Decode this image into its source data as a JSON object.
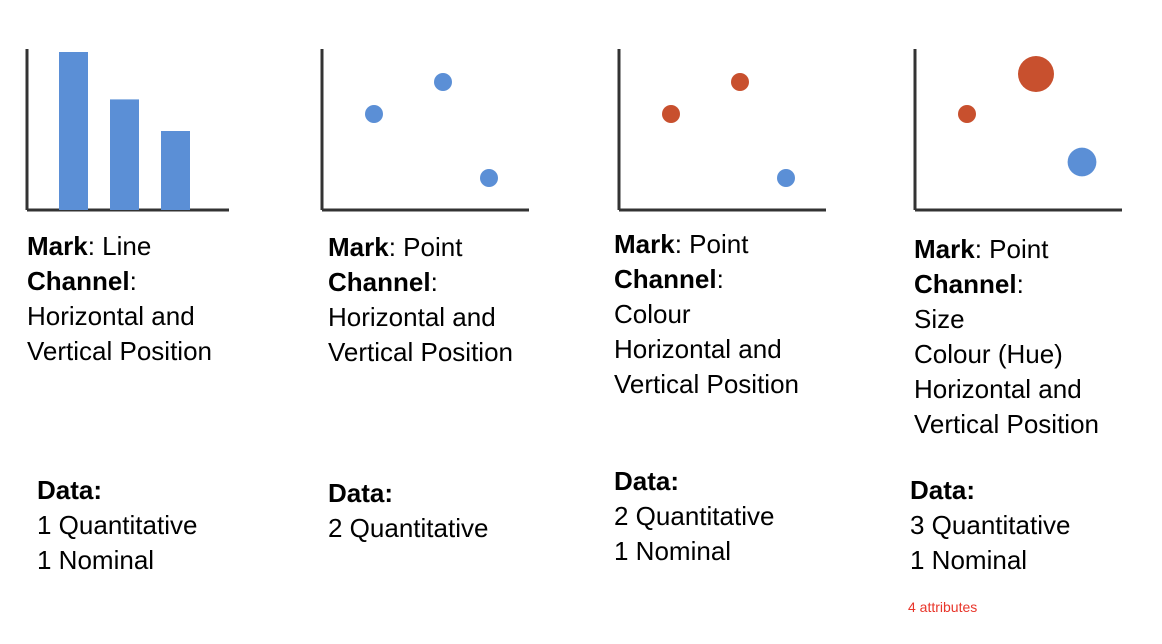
{
  "colors": {
    "blue": "#5b8fd6",
    "orange": "#c8502e",
    "axis": "#333333"
  },
  "panels": [
    {
      "chart": {
        "type": "bar",
        "values": [
          10,
          7,
          5
        ]
      },
      "mark_label": "Mark",
      "mark_value": ": Line",
      "channel_label": "Channel",
      "channel_colon": ":",
      "channel_lines": [
        "Horizontal and",
        "Vertical Position"
      ],
      "data_title": "Data:",
      "data_lines": [
        "1 Quantitative",
        "1 Nominal"
      ]
    },
    {
      "chart": {
        "type": "scatter",
        "points": [
          {
            "x": 2,
            "y": 6,
            "color": "blue",
            "size": 1
          },
          {
            "x": 5,
            "y": 8,
            "color": "blue",
            "size": 1
          },
          {
            "x": 7,
            "y": 2,
            "color": "blue",
            "size": 1
          }
        ]
      },
      "mark_label": "Mark",
      "mark_value": ":  Point",
      "channel_label": "Channel",
      "channel_colon": ":",
      "channel_lines": [
        "Horizontal and",
        "Vertical Position"
      ],
      "data_title": "Data:",
      "data_lines": [
        "2 Quantitative"
      ]
    },
    {
      "chart": {
        "type": "scatter",
        "points": [
          {
            "x": 2,
            "y": 6,
            "color": "orange",
            "size": 1
          },
          {
            "x": 5,
            "y": 8,
            "color": "orange",
            "size": 1
          },
          {
            "x": 7,
            "y": 2,
            "color": "blue",
            "size": 1
          }
        ]
      },
      "mark_label": "Mark",
      "mark_value": ":  Point",
      "channel_label": "Channel",
      "channel_colon": ":",
      "channel_lines": [
        "Colour",
        "Horizontal and",
        "Vertical Position"
      ],
      "data_title": "Data:",
      "data_lines": [
        "2 Quantitative",
        "1 Nominal"
      ]
    },
    {
      "chart": {
        "type": "scatter",
        "points": [
          {
            "x": 2,
            "y": 6,
            "color": "orange",
            "size": 1
          },
          {
            "x": 5,
            "y": 8.5,
            "color": "orange",
            "size": 2
          },
          {
            "x": 7,
            "y": 3,
            "color": "blue",
            "size": 1.6
          }
        ]
      },
      "mark_label": "Mark",
      "mark_value": ":  Point",
      "channel_label": "Channel",
      "channel_colon": ":",
      "channel_lines": [
        "Size",
        "Colour (Hue)",
        "Horizontal and",
        "Vertical Position"
      ],
      "data_title": "Data:",
      "data_lines": [
        "3 Quantitative",
        "1 Nominal"
      ],
      "note": "4 attributes"
    }
  ]
}
